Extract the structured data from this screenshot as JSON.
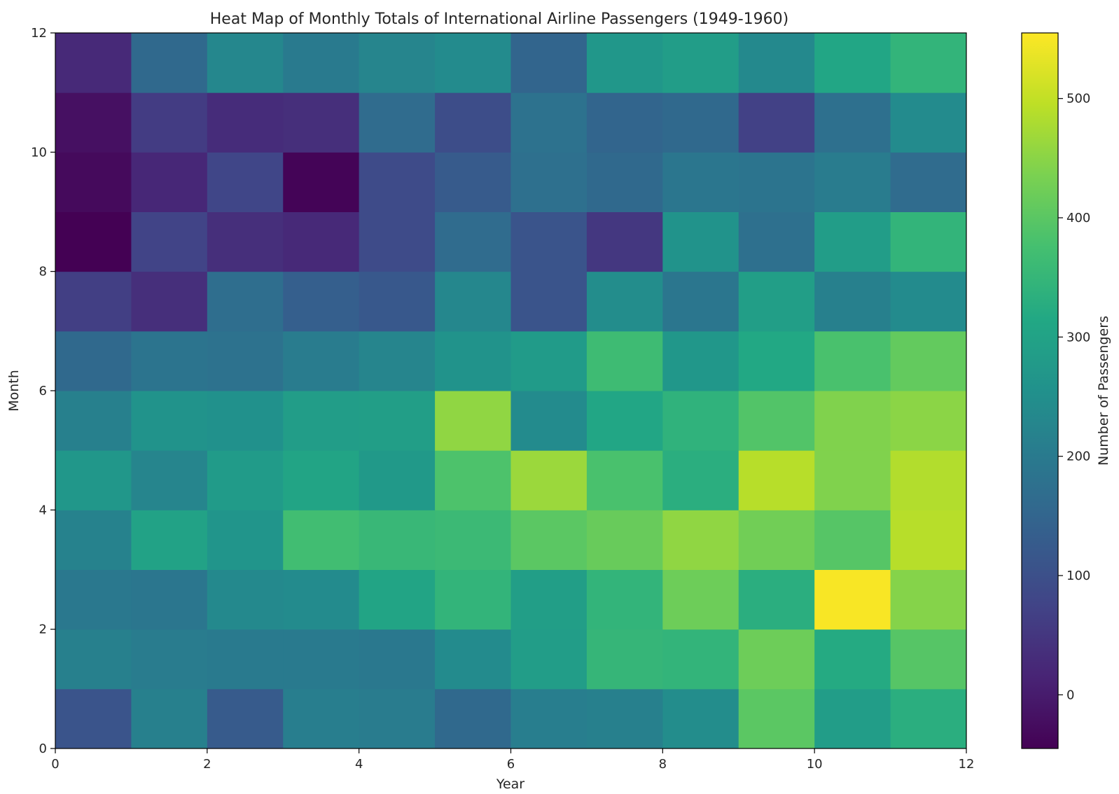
{
  "chart_data": {
    "type": "heatmap",
    "title": "Heat Map of Monthly Totals of International Airline Passengers (1949-1960)",
    "xlabel": "Year",
    "ylabel": "Month",
    "colorbar_label": "Number of Passengers",
    "colormap": "viridis",
    "xlim": [
      0,
      12
    ],
    "ylim": [
      0,
      12
    ],
    "clim": [
      -45,
      555
    ],
    "x_ticks": [
      0,
      2,
      4,
      6,
      8,
      10,
      12
    ],
    "y_ticks": [
      0,
      2,
      4,
      6,
      8,
      10,
      12
    ],
    "colorbar_ticks": [
      0,
      100,
      200,
      300,
      400,
      500
    ],
    "grid": false,
    "legend": "colorbar-right",
    "rows_note": "values[r][c]: r = month row from bottom (0..11), c = year column from left (0..11)",
    "values": [
      [
        110,
        215,
        125,
        210,
        205,
        160,
        210,
        215,
        245,
        400,
        285,
        330
      ],
      [
        215,
        205,
        200,
        200,
        195,
        240,
        285,
        350,
        345,
        420,
        320,
        395
      ],
      [
        195,
        190,
        235,
        240,
        305,
        345,
        290,
        345,
        420,
        330,
        550,
        445
      ],
      [
        220,
        300,
        265,
        370,
        355,
        360,
        400,
        415,
        455,
        425,
        395,
        490
      ],
      [
        270,
        225,
        280,
        305,
        275,
        385,
        465,
        380,
        330,
        490,
        440,
        485
      ],
      [
        215,
        260,
        255,
        285,
        290,
        455,
        240,
        310,
        340,
        390,
        440,
        450
      ],
      [
        160,
        185,
        180,
        205,
        225,
        260,
        280,
        365,
        270,
        315,
        380,
        410
      ],
      [
        65,
        35,
        170,
        135,
        120,
        230,
        110,
        245,
        190,
        290,
        215,
        240
      ],
      [
        -45,
        75,
        35,
        25,
        90,
        165,
        110,
        50,
        260,
        175,
        285,
        345
      ],
      [
        -30,
        20,
        80,
        -40,
        90,
        125,
        175,
        160,
        190,
        185,
        205,
        165
      ],
      [
        -20,
        60,
        30,
        35,
        165,
        95,
        180,
        150,
        160,
        70,
        175,
        240
      ],
      [
        25,
        160,
        230,
        200,
        225,
        240,
        150,
        270,
        285,
        235,
        310,
        345
      ]
    ]
  }
}
